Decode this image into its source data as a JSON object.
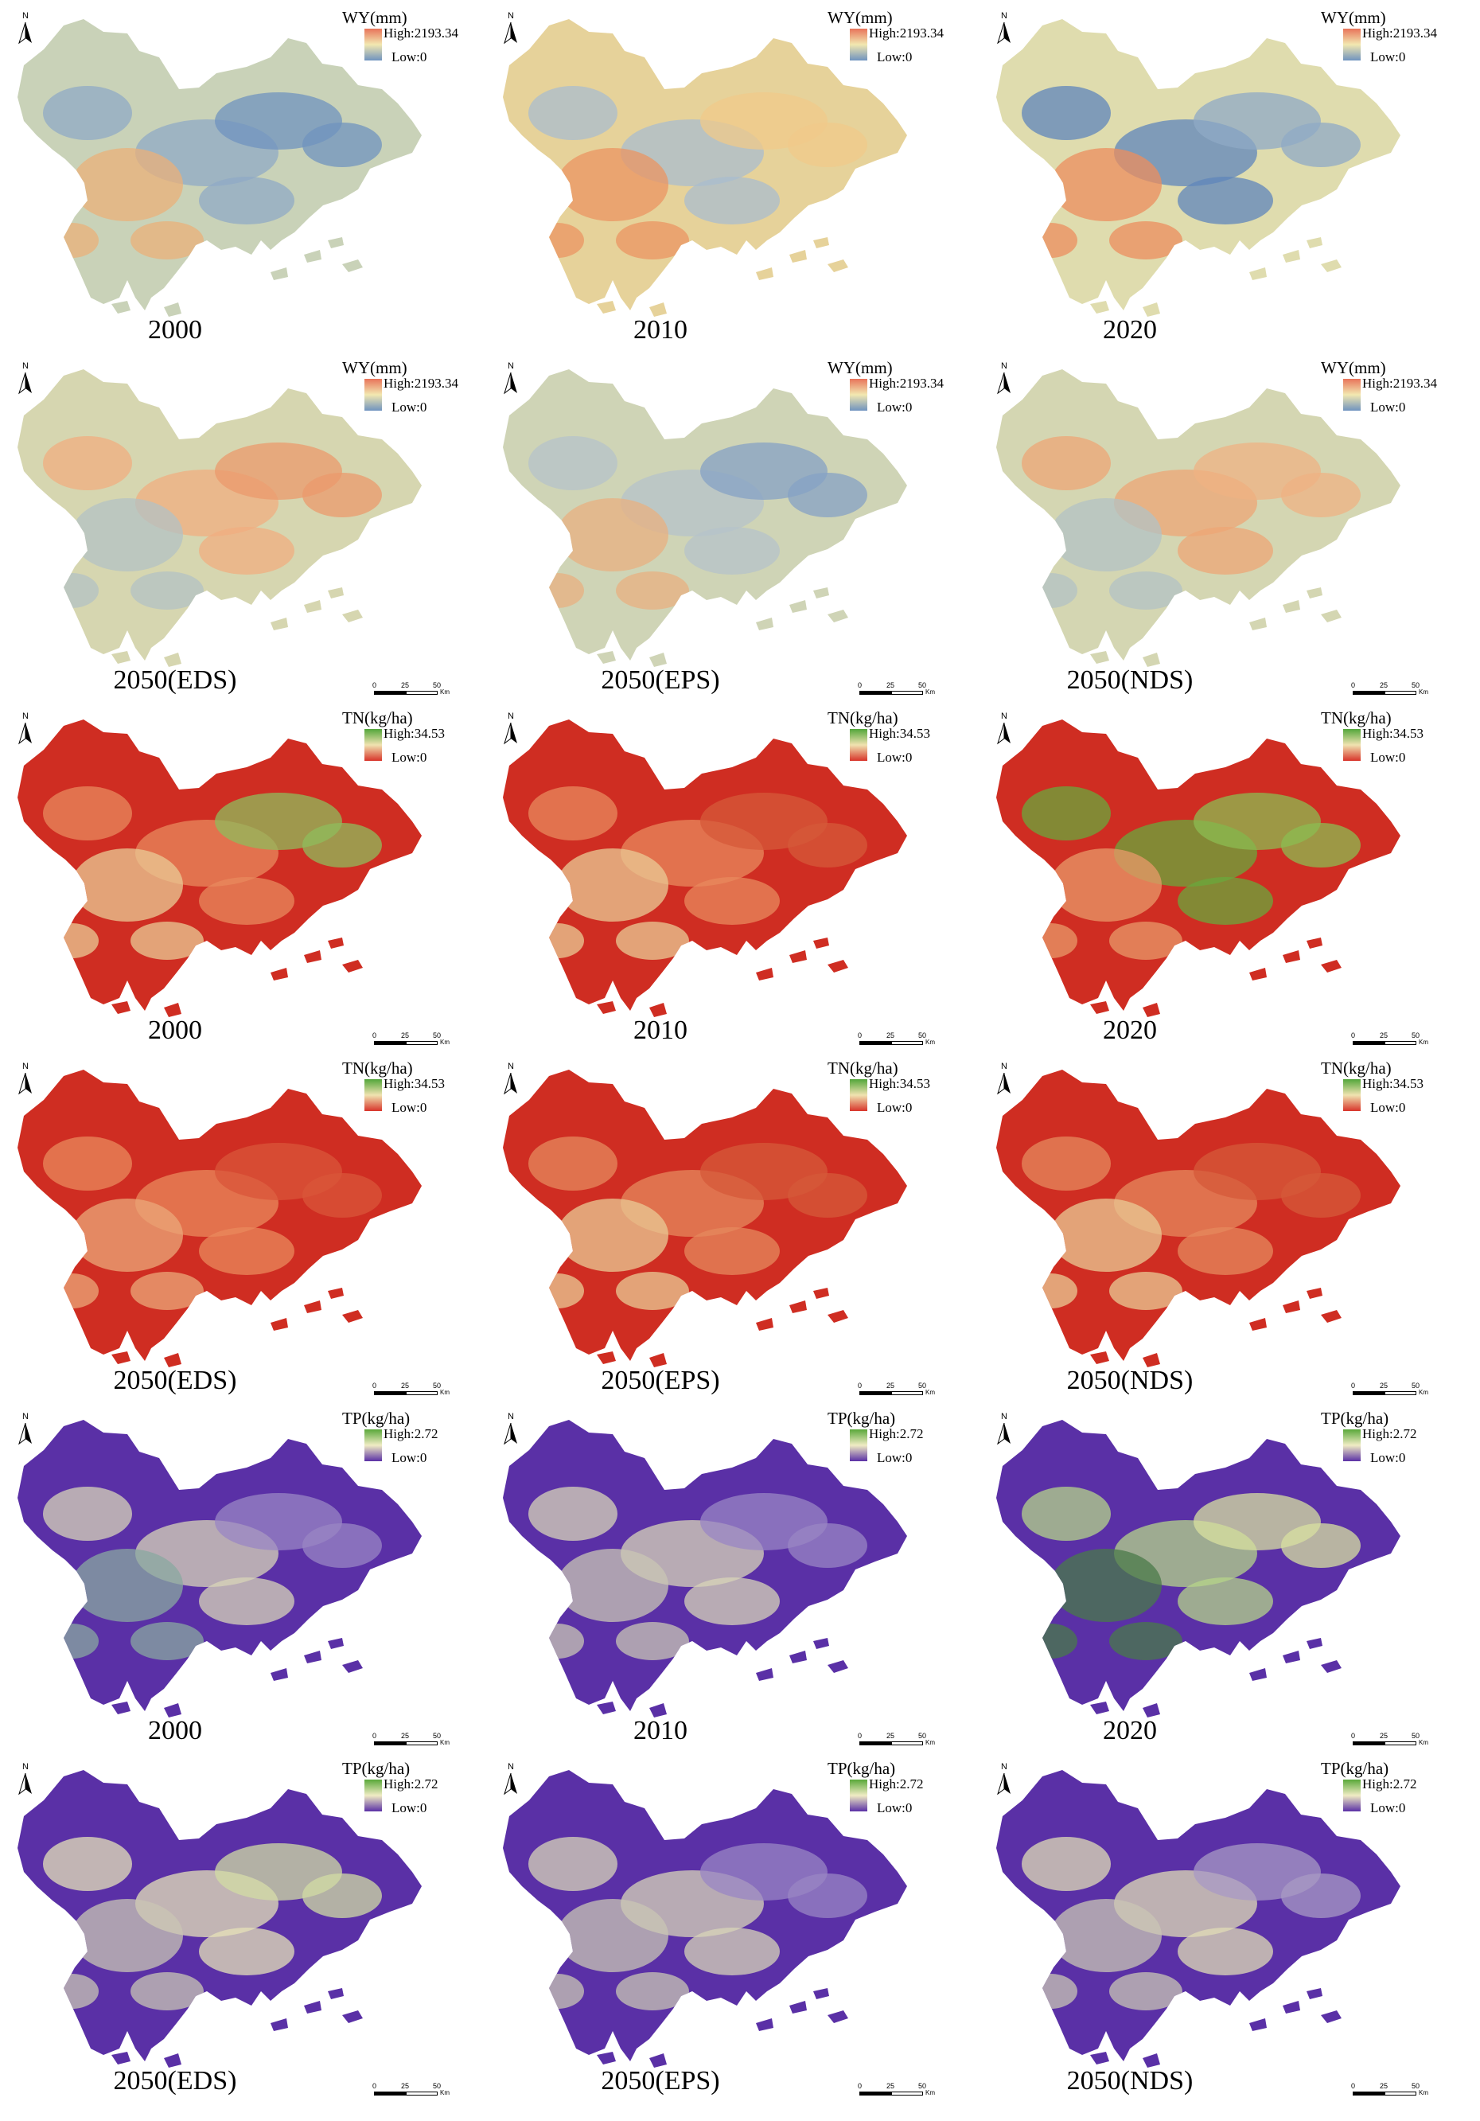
{
  "colors": {
    "wy": {
      "high": "#e8735a",
      "mid": "#f2e8b0",
      "low": "#6f93bf"
    },
    "tn": {
      "high": "#52a63a",
      "mid": "#f0e3b0",
      "low": "#d8342a"
    },
    "tp": {
      "high": "#5aa83a",
      "mid": "#f0ecc4",
      "low": "#5a30a6"
    }
  },
  "legends": {
    "wy": {
      "title": "WY(mm)",
      "high": "High:2193.34",
      "low": "Low:0"
    },
    "tn": {
      "title": "TN(kg/ha)",
      "high": "High:34.53",
      "low": "Low:0"
    },
    "tp": {
      "title": "TP(kg/ha)",
      "high": "High:2.72",
      "low": "Low:0"
    }
  },
  "scale_bar": {
    "t0": "0",
    "t1": "25",
    "t2": "50",
    "unit": "Km"
  },
  "north_label": "N",
  "panels": [
    {
      "variable": "wy",
      "label": "2000",
      "scale_bar": false,
      "tone": {
        "base": "#c9d2b8",
        "patches": [
          "#8fa9c6",
          "#e9b07a",
          "#6f93bf"
        ]
      }
    },
    {
      "variable": "wy",
      "label": "2010",
      "scale_bar": false,
      "tone": {
        "base": "#e6d29a",
        "patches": [
          "#a9bccd",
          "#eb9462",
          "#f0c98a"
        ]
      }
    },
    {
      "variable": "wy",
      "label": "2020",
      "scale_bar": false,
      "tone": {
        "base": "#dfdcae",
        "patches": [
          "#5f86bb",
          "#ec8d5e",
          "#8fa9c6"
        ]
      }
    },
    {
      "variable": "wy",
      "label": "2050(EDS)",
      "scale_bar": true,
      "tone": {
        "base": "#d6d6b0",
        "patches": [
          "#f0ae80",
          "#b3c2c4",
          "#eb9a6c"
        ]
      }
    },
    {
      "variable": "wy",
      "label": "2050(EPS)",
      "scale_bar": true,
      "tone": {
        "base": "#cfd4b6",
        "patches": [
          "#b6c3c9",
          "#e8b080",
          "#86a2c4"
        ]
      }
    },
    {
      "variable": "wy",
      "label": "2050(NDS)",
      "scale_bar": true,
      "tone": {
        "base": "#d4d6b2",
        "patches": [
          "#eda676",
          "#b3c2c4",
          "#efb283"
        ]
      }
    },
    {
      "variable": "tn",
      "label": "2000",
      "scale_bar": true,
      "tone": {
        "base": "#cf2d22",
        "patches": [
          "#e8895e",
          "#eacb96",
          "#8fbc5c"
        ]
      }
    },
    {
      "variable": "tn",
      "label": "2010",
      "scale_bar": true,
      "tone": {
        "base": "#cf2d22",
        "patches": [
          "#e8895e",
          "#eacb96",
          "#d65a3a"
        ]
      }
    },
    {
      "variable": "tn",
      "label": "2020",
      "scale_bar": true,
      "tone": {
        "base": "#cf2d22",
        "patches": [
          "#6aa83c",
          "#e89a6a",
          "#8cbc52"
        ]
      }
    },
    {
      "variable": "tn",
      "label": "2050(EDS)",
      "scale_bar": true,
      "tone": {
        "base": "#cf2d22",
        "patches": [
          "#e9895c",
          "#eba87a",
          "#d9553a"
        ]
      }
    },
    {
      "variable": "tn",
      "label": "2050(EPS)",
      "scale_bar": true,
      "tone": {
        "base": "#cf2d22",
        "patches": [
          "#e58a5e",
          "#eacb96",
          "#d65a3a"
        ]
      }
    },
    {
      "variable": "tn",
      "label": "2050(NDS)",
      "scale_bar": true,
      "tone": {
        "base": "#cf2d22",
        "patches": [
          "#e58a5e",
          "#eacb96",
          "#d65a3a"
        ]
      }
    },
    {
      "variable": "tp",
      "label": "2000",
      "scale_bar": true,
      "tone": {
        "base": "#5a30a6",
        "patches": [
          "#d8d4b8",
          "#8aa8a0",
          "#9a86c4"
        ]
      }
    },
    {
      "variable": "tp",
      "label": "2010",
      "scale_bar": true,
      "tone": {
        "base": "#5a30a6",
        "patches": [
          "#d8d4b8",
          "#c9c6b4",
          "#9a86c4"
        ]
      }
    },
    {
      "variable": "tp",
      "label": "2020",
      "scale_bar": true,
      "tone": {
        "base": "#5a30a6",
        "patches": [
          "#b6d48a",
          "#4a7a4a",
          "#d8e0a0"
        ]
      }
    },
    {
      "variable": "tp",
      "label": "2050(EDS)",
      "scale_bar": true,
      "tone": {
        "base": "#5a30a6",
        "patches": [
          "#e6e2b8",
          "#c9c6b4",
          "#d2dca4"
        ]
      }
    },
    {
      "variable": "tp",
      "label": "2050(EPS)",
      "scale_bar": true,
      "tone": {
        "base": "#5a30a6",
        "patches": [
          "#d8d4b8",
          "#c9c6b4",
          "#9a86c4"
        ]
      }
    },
    {
      "variable": "tp",
      "label": "2050(NDS)",
      "scale_bar": true,
      "tone": {
        "base": "#5a30a6",
        "patches": [
          "#e0dcb6",
          "#c9c6b4",
          "#a89ac4"
        ]
      }
    }
  ]
}
